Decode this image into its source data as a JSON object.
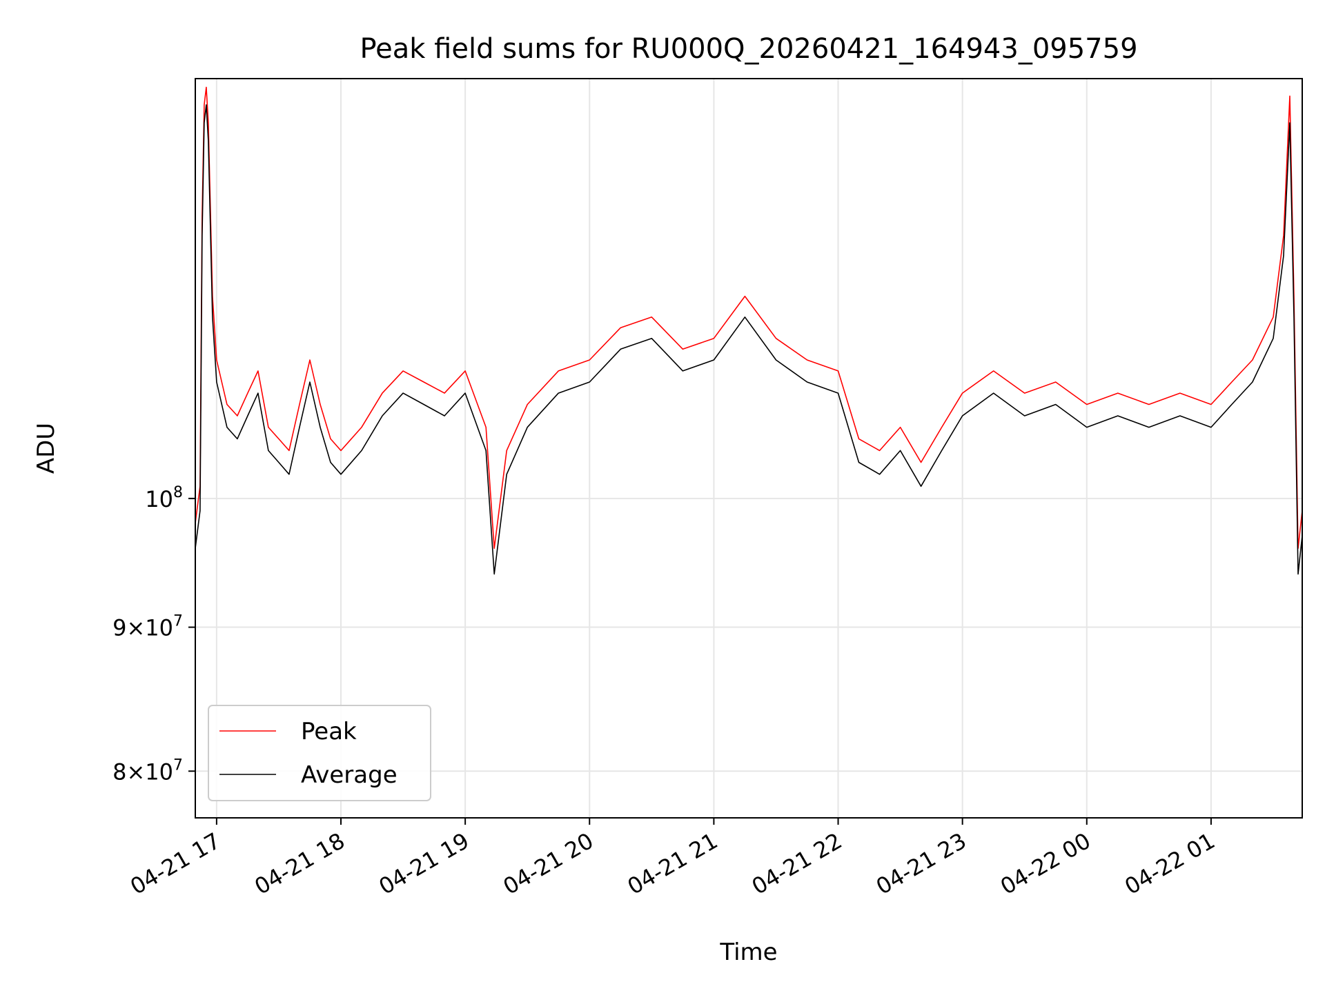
{
  "chart_data": {
    "type": "line",
    "title": "Peak field sums for RU000Q_20260421_164943_095759",
    "xlabel": "Time",
    "ylabel": "ADU",
    "y_scale": "log",
    "ylim": [
      77000000,
      141000000
    ],
    "xlim": [
      "2026-04-21 16:49:43",
      "2026-04-22 01:44:00"
    ],
    "grid": true,
    "legend": {
      "placement": "lower-left",
      "entries": [
        "Peak",
        "Average"
      ]
    },
    "x_ticks": [
      {
        "t": "2026-04-21 17:00",
        "label": "04-21 17"
      },
      {
        "t": "2026-04-21 18:00",
        "label": "04-21 18"
      },
      {
        "t": "2026-04-21 19:00",
        "label": "04-21 19"
      },
      {
        "t": "2026-04-21 20:00",
        "label": "04-21 20"
      },
      {
        "t": "2026-04-21 21:00",
        "label": "04-21 21"
      },
      {
        "t": "2026-04-21 22:00",
        "label": "04-21 22"
      },
      {
        "t": "2026-04-21 23:00",
        "label": "04-21 23"
      },
      {
        "t": "2026-04-22 00:00",
        "label": "04-22 00"
      },
      {
        "t": "2026-04-22 01:00",
        "label": "04-22 01"
      }
    ],
    "y_ticks": [
      {
        "value": 80000000,
        "mant": "8",
        "base": "10",
        "exp": "7"
      },
      {
        "value": 90000000,
        "mant": "9",
        "base": "10",
        "exp": "7"
      },
      {
        "value": 100000000,
        "mant": "",
        "base": "10",
        "exp": "8"
      }
    ],
    "series": [
      {
        "name": "Peak",
        "color": "#ff0000",
        "x": [
          "2026-04-21 16:49:43",
          "2026-04-21 16:52",
          "2026-04-21 16:53",
          "2026-04-21 16:54",
          "2026-04-21 16:55",
          "2026-04-21 16:56",
          "2026-04-21 16:58",
          "2026-04-21 17:00",
          "2026-04-21 17:05",
          "2026-04-21 17:10",
          "2026-04-21 17:15",
          "2026-04-21 17:20",
          "2026-04-21 17:25",
          "2026-04-21 17:30",
          "2026-04-21 17:35",
          "2026-04-21 17:40",
          "2026-04-21 17:45",
          "2026-04-21 17:50",
          "2026-04-21 17:55",
          "2026-04-21 18:00",
          "2026-04-21 18:10",
          "2026-04-21 18:20",
          "2026-04-21 18:30",
          "2026-04-21 18:40",
          "2026-04-21 18:50",
          "2026-04-21 19:00",
          "2026-04-21 19:10",
          "2026-04-21 19:14",
          "2026-04-21 19:20",
          "2026-04-21 19:30",
          "2026-04-21 19:45",
          "2026-04-21 20:00",
          "2026-04-21 20:15",
          "2026-04-21 20:30",
          "2026-04-21 20:45",
          "2026-04-21 21:00",
          "2026-04-21 21:15",
          "2026-04-21 21:30",
          "2026-04-21 21:45",
          "2026-04-21 22:00",
          "2026-04-21 22:10",
          "2026-04-21 22:20",
          "2026-04-21 22:30",
          "2026-04-21 22:40",
          "2026-04-21 22:50",
          "2026-04-21 23:00",
          "2026-04-21 23:15",
          "2026-04-21 23:30",
          "2026-04-21 23:45",
          "2026-04-22 00:00",
          "2026-04-22 00:15",
          "2026-04-22 00:30",
          "2026-04-22 00:45",
          "2026-04-22 01:00",
          "2026-04-22 01:10",
          "2026-04-22 01:20",
          "2026-04-22 01:30",
          "2026-04-22 01:35",
          "2026-04-22 01:38",
          "2026-04-22 01:40",
          "2026-04-22 01:42",
          "2026-04-22 01:44"
        ],
        "values": [
          98000000,
          101000000,
          126000000,
          138000000,
          140000000,
          136000000,
          118000000,
          112000000,
          108000000,
          107000000,
          109000000,
          111000000,
          106000000,
          105000000,
          104000000,
          108000000,
          112000000,
          108000000,
          105000000,
          104000000,
          106000000,
          109000000,
          111000000,
          110000000,
          109000000,
          111000000,
          106000000,
          96000000,
          104000000,
          108000000,
          111000000,
          112000000,
          115000000,
          116000000,
          113000000,
          114000000,
          118000000,
          114000000,
          112000000,
          111000000,
          105000000,
          104000000,
          106000000,
          103000000,
          106000000,
          109000000,
          111000000,
          109000000,
          110000000,
          108000000,
          109000000,
          108000000,
          109000000,
          108000000,
          110000000,
          112000000,
          116000000,
          124000000,
          139000000,
          118000000,
          96000000,
          99000000
        ]
      },
      {
        "name": "Average",
        "color": "#000000",
        "x": [
          "2026-04-21 16:49:43",
          "2026-04-21 16:52",
          "2026-04-21 16:53",
          "2026-04-21 16:54",
          "2026-04-21 16:55",
          "2026-04-21 16:56",
          "2026-04-21 16:58",
          "2026-04-21 17:00",
          "2026-04-21 17:05",
          "2026-04-21 17:10",
          "2026-04-21 17:15",
          "2026-04-21 17:20",
          "2026-04-21 17:25",
          "2026-04-21 17:30",
          "2026-04-21 17:35",
          "2026-04-21 17:40",
          "2026-04-21 17:45",
          "2026-04-21 17:50",
          "2026-04-21 17:55",
          "2026-04-21 18:00",
          "2026-04-21 18:10",
          "2026-04-21 18:20",
          "2026-04-21 18:30",
          "2026-04-21 18:40",
          "2026-04-21 18:50",
          "2026-04-21 19:00",
          "2026-04-21 19:10",
          "2026-04-21 19:14",
          "2026-04-21 19:20",
          "2026-04-21 19:30",
          "2026-04-21 19:45",
          "2026-04-21 20:00",
          "2026-04-21 20:15",
          "2026-04-21 20:30",
          "2026-04-21 20:45",
          "2026-04-21 21:00",
          "2026-04-21 21:15",
          "2026-04-21 21:30",
          "2026-04-21 21:45",
          "2026-04-21 22:00",
          "2026-04-21 22:10",
          "2026-04-21 22:20",
          "2026-04-21 22:30",
          "2026-04-21 22:40",
          "2026-04-21 22:50",
          "2026-04-21 23:00",
          "2026-04-21 23:15",
          "2026-04-21 23:30",
          "2026-04-21 23:45",
          "2026-04-22 00:00",
          "2026-04-22 00:15",
          "2026-04-22 00:30",
          "2026-04-22 00:45",
          "2026-04-22 01:00",
          "2026-04-22 01:10",
          "2026-04-22 01:20",
          "2026-04-22 01:30",
          "2026-04-22 01:35",
          "2026-04-22 01:38",
          "2026-04-22 01:40",
          "2026-04-22 01:42",
          "2026-04-22 01:44"
        ],
        "values": [
          96000000,
          99000000,
          124000000,
          136000000,
          138000000,
          134000000,
          116000000,
          110000000,
          106000000,
          105000000,
          107000000,
          109000000,
          104000000,
          103000000,
          102000000,
          106000000,
          110000000,
          106000000,
          103000000,
          102000000,
          104000000,
          107000000,
          109000000,
          108000000,
          107000000,
          109000000,
          104000000,
          94000000,
          102000000,
          106000000,
          109000000,
          110000000,
          113000000,
          114000000,
          111000000,
          112000000,
          116000000,
          112000000,
          110000000,
          109000000,
          103000000,
          102000000,
          104000000,
          101000000,
          104000000,
          107000000,
          109000000,
          107000000,
          108000000,
          106000000,
          107000000,
          106000000,
          107000000,
          106000000,
          108000000,
          110000000,
          114000000,
          122000000,
          136000000,
          116000000,
          94000000,
          97000000
        ]
      }
    ]
  }
}
